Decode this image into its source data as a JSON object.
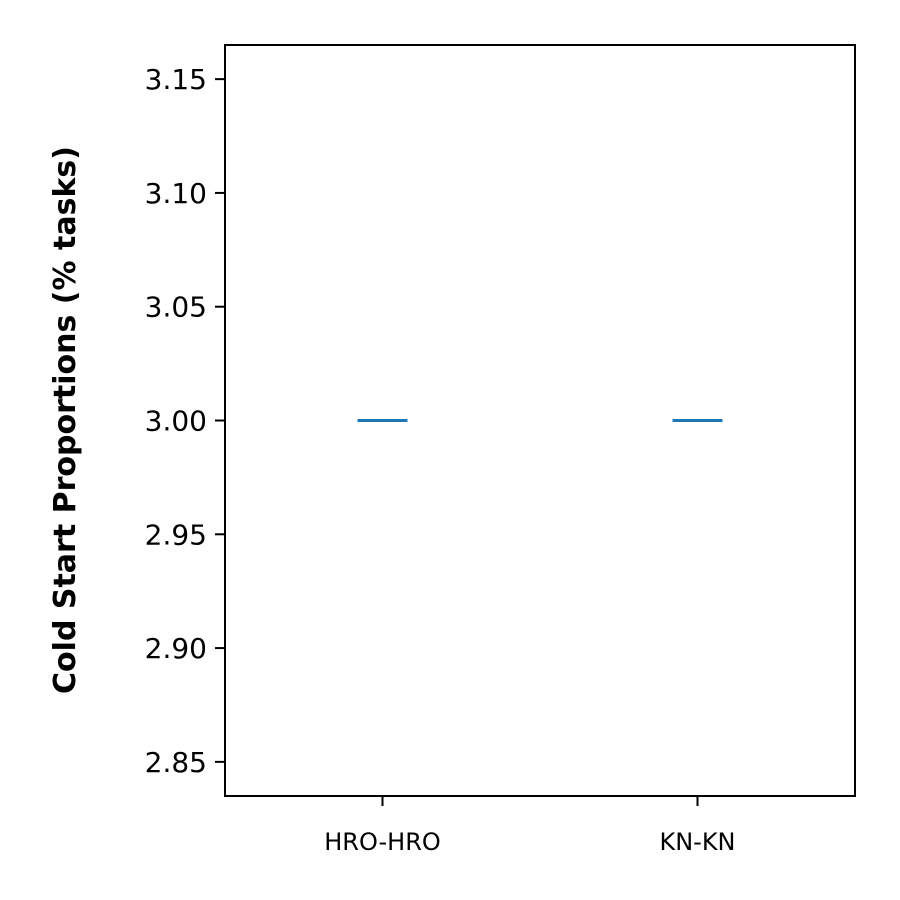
{
  "chart_data": {
    "type": "box",
    "title": "",
    "xlabel": "",
    "ylabel": "Cold Start Proportions (% tasks)",
    "categories": [
      "HRO-HRO",
      "KN-KN"
    ],
    "series": [
      {
        "values": [
          3.0,
          3.0
        ],
        "boxes": [
          {
            "category": "HRO-HRO",
            "min": 3.0,
            "q1": 3.0,
            "median": 3.0,
            "q3": 3.0,
            "max": 3.0
          },
          {
            "category": "KN-KN",
            "min": 3.0,
            "q1": 3.0,
            "median": 3.0,
            "q3": 3.0,
            "max": 3.0
          }
        ]
      }
    ],
    "ylim": [
      2.835,
      3.165
    ],
    "yticks": [
      2.85,
      2.9,
      2.95,
      3.0,
      3.05,
      3.1,
      3.15
    ],
    "ytick_labels": [
      "2.85",
      "2.90",
      "2.95",
      "3.00",
      "3.05",
      "3.10",
      "3.15"
    ],
    "grid": false,
    "colors": {
      "median": "#1f77b4",
      "axes": "#000000"
    }
  }
}
